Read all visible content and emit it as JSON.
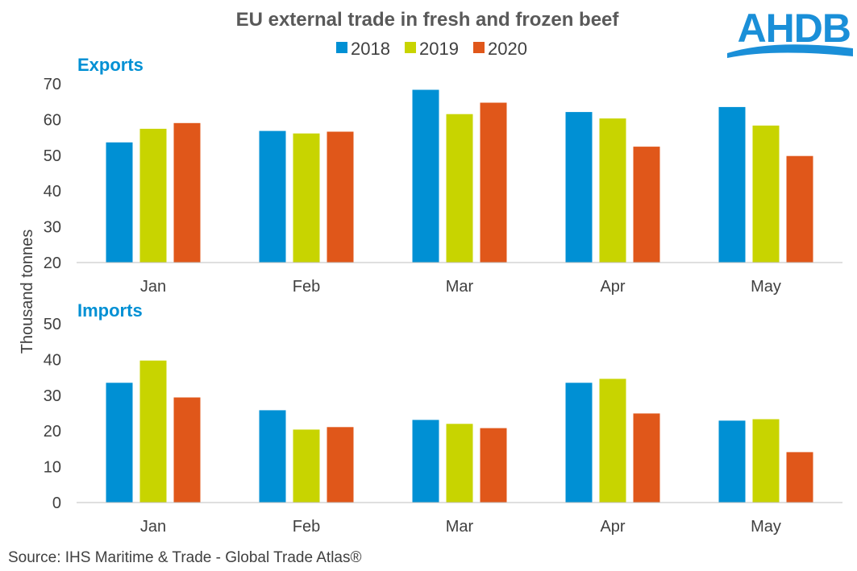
{
  "chart_data": {
    "type": "bar",
    "title": "EU external trade in fresh and frozen beef",
    "ylabel": "Thousand tonnes",
    "source": "Source: IHS Maritime & Trade - Global Trade Atlas®",
    "logo": "AHDB",
    "legend": {
      "placement": "top",
      "entries": [
        {
          "name": "2018",
          "color": "#0090d4"
        },
        {
          "name": "2019",
          "color": "#c8d400"
        },
        {
          "name": "2020",
          "color": "#e0571a"
        }
      ]
    },
    "categories": [
      "Jan",
      "Feb",
      "Mar",
      "Apr",
      "May"
    ],
    "panels": [
      {
        "name": "Exports",
        "ylim": [
          20,
          70
        ],
        "yticks": [
          20,
          30,
          40,
          50,
          60,
          70
        ],
        "series": [
          {
            "name": "2018",
            "values": [
              53.6,
              56.8,
              68.3,
              62.1,
              63.5
            ]
          },
          {
            "name": "2019",
            "values": [
              57.4,
              56.1,
              61.5,
              60.3,
              58.3
            ]
          },
          {
            "name": "2020",
            "values": [
              59.0,
              56.6,
              64.7,
              52.4,
              49.8
            ]
          }
        ]
      },
      {
        "name": "Imports",
        "ylim": [
          0,
          50
        ],
        "yticks": [
          0,
          10,
          20,
          30,
          40,
          50
        ],
        "series": [
          {
            "name": "2018",
            "values": [
              33.5,
              25.8,
              23.1,
              33.5,
              22.9
            ]
          },
          {
            "name": "2019",
            "values": [
              39.7,
              20.4,
              22.0,
              34.6,
              23.3
            ]
          },
          {
            "name": "2020",
            "values": [
              29.4,
              21.1,
              20.8,
              24.9,
              14.1
            ]
          }
        ]
      }
    ]
  }
}
